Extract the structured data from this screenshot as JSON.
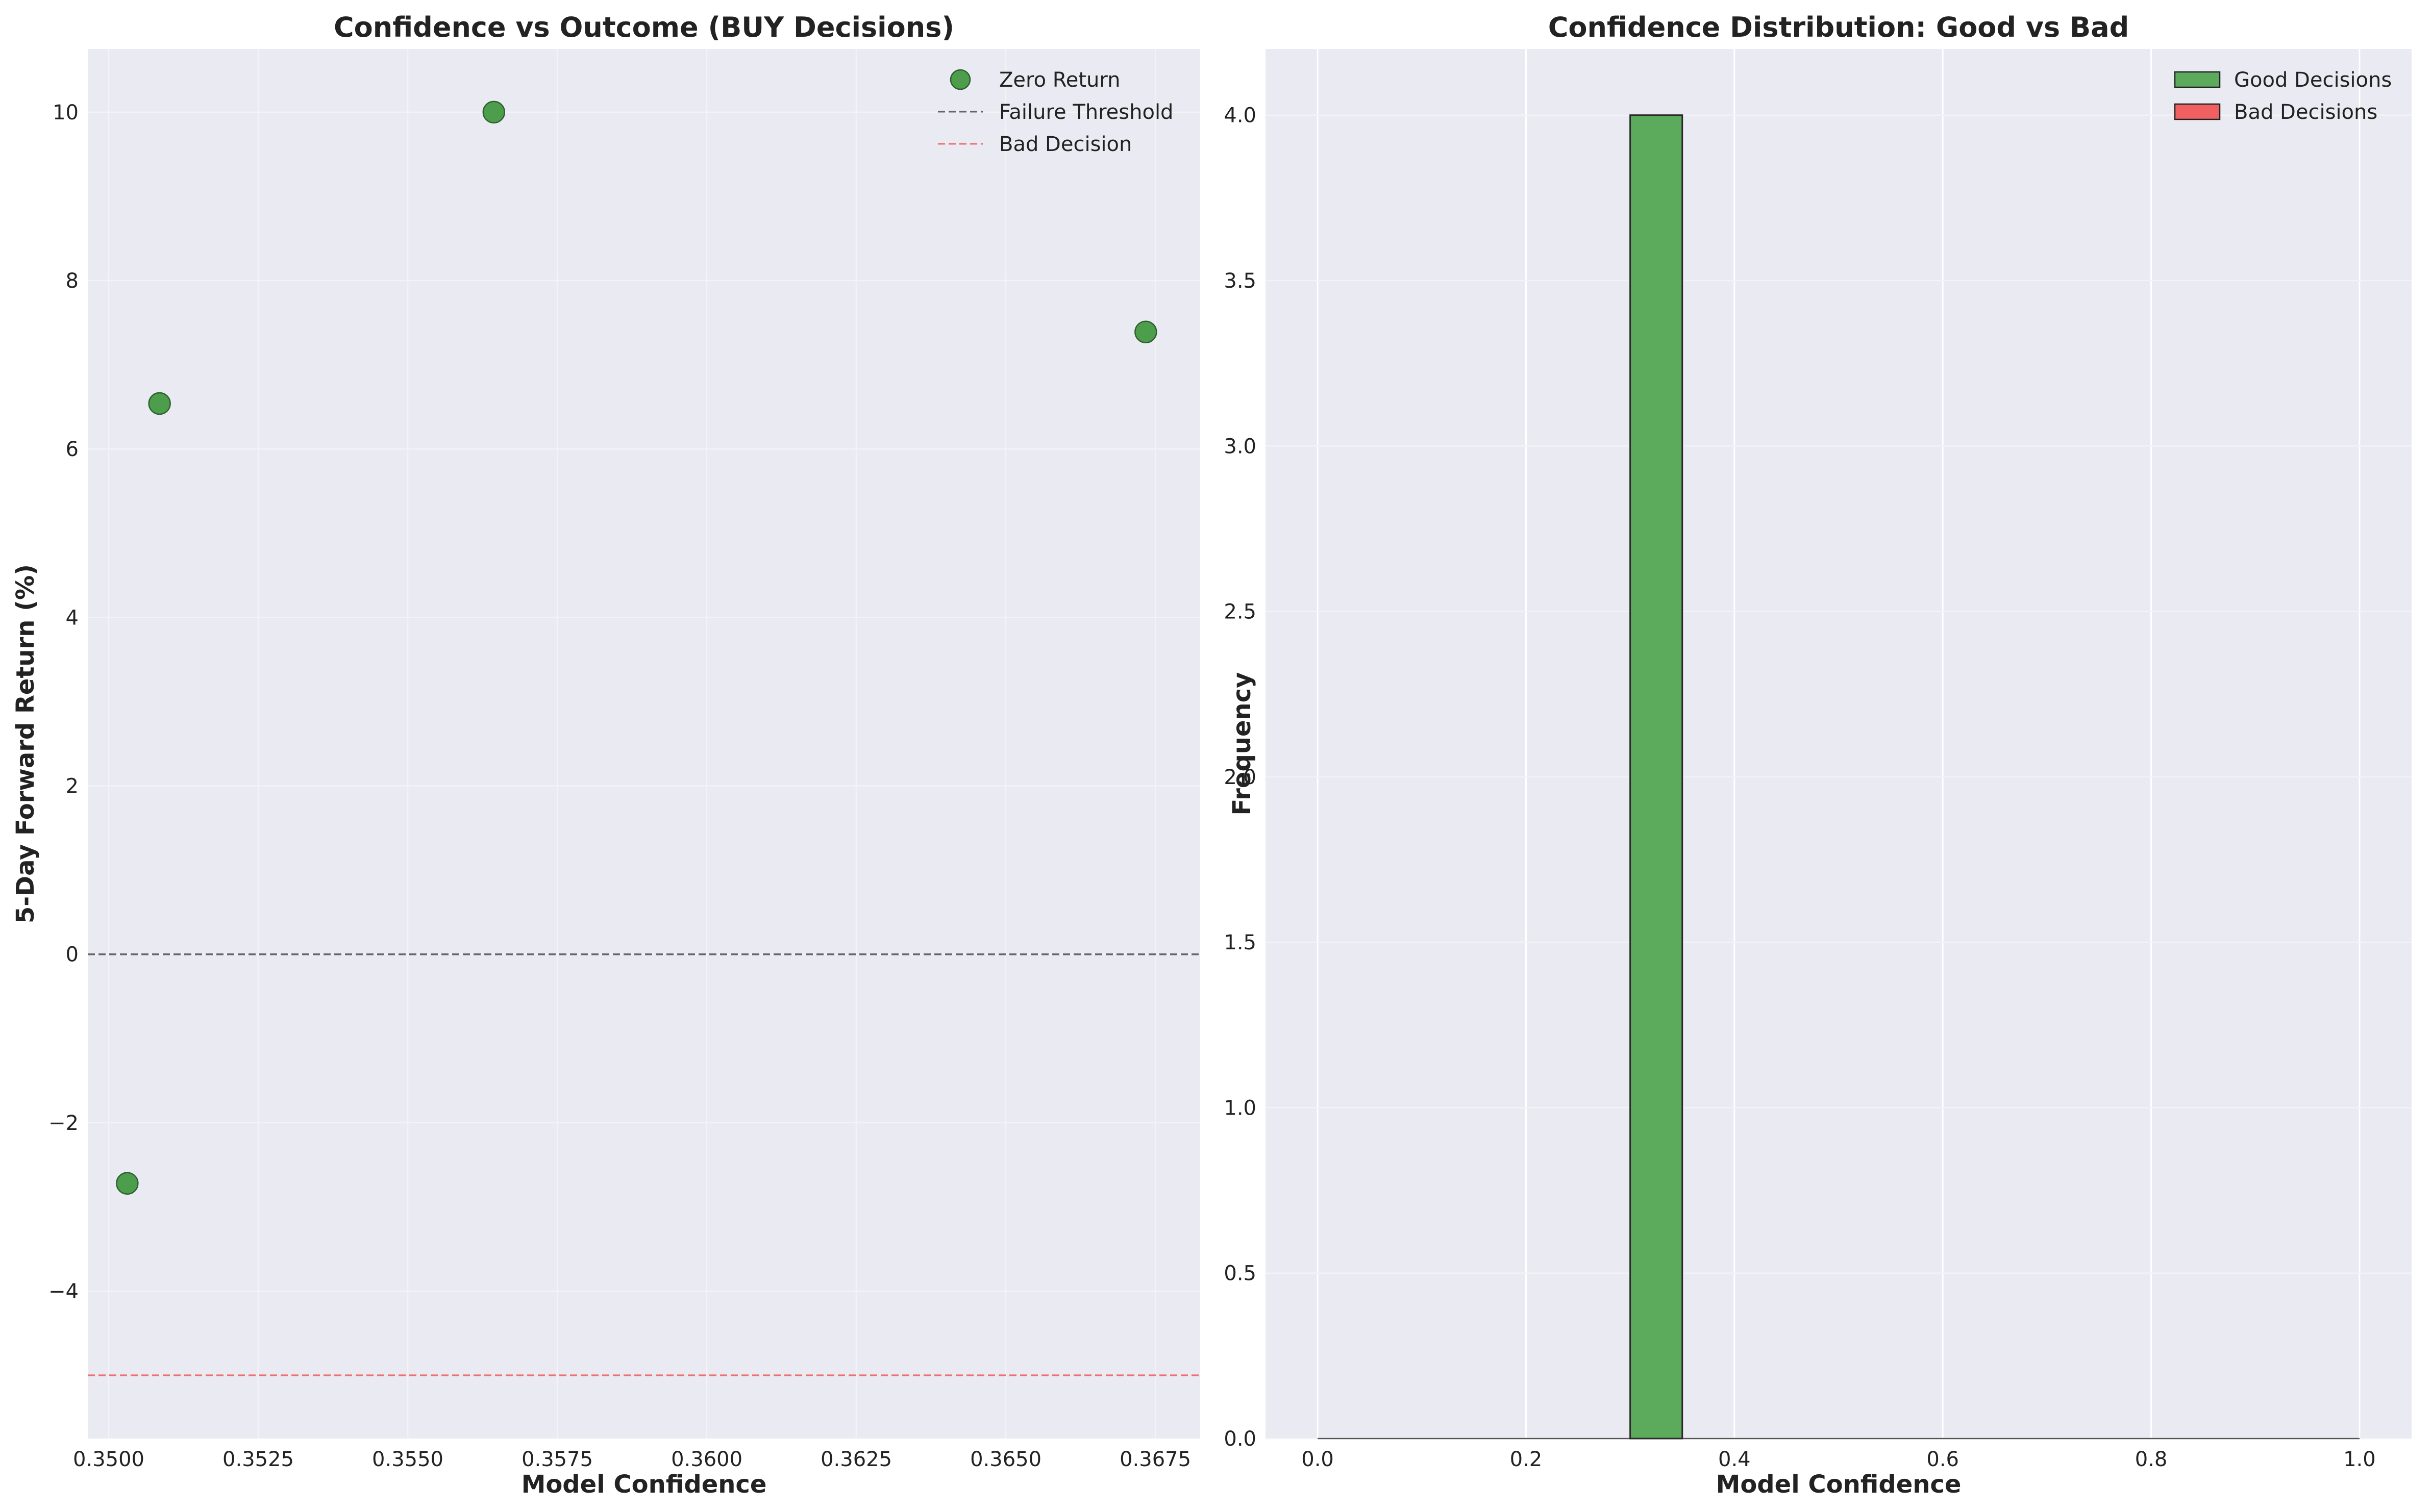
{
  "chart_data": [
    {
      "type": "scatter",
      "title": "Confidence vs Outcome (BUY Decisions)",
      "xlabel": "Model Confidence",
      "ylabel": "5-Day Forward Return (%)",
      "xlim": [
        0.34965,
        0.36825
      ],
      "ylim": [
        -5.75,
        10.75
      ],
      "xticks": [
        0.35,
        0.3525,
        0.355,
        0.3575,
        0.36,
        0.3625,
        0.365,
        0.3675
      ],
      "xtick_labels": [
        "0.3500",
        "0.3525",
        "0.3550",
        "0.3575",
        "0.3600",
        "0.3625",
        "0.3650",
        "0.3675"
      ],
      "yticks": [
        -4,
        -2,
        0,
        2,
        4,
        6,
        8,
        10
      ],
      "ytick_labels": [
        "−4",
        "−2",
        "0",
        "2",
        "4",
        "6",
        "8",
        "10"
      ],
      "grid": true,
      "legend_position": "top-right",
      "series": [
        {
          "name": "Zero Return",
          "color": "#4c9e4c",
          "points": [
            {
              "x": 0.35031,
              "y": -2.72
            },
            {
              "x": 0.35085,
              "y": 6.54
            },
            {
              "x": 0.35644,
              "y": 10.0
            },
            {
              "x": 0.36734,
              "y": 7.39
            }
          ]
        }
      ],
      "reference_lines": [
        {
          "name": "Failure Threshold",
          "y": 0,
          "color": "#666666",
          "style": "dashed"
        },
        {
          "name": "Bad Decision",
          "y": -5,
          "color": "#f07070",
          "style": "dashed"
        }
      ]
    },
    {
      "type": "bar",
      "subtype": "histogram",
      "title": "Confidence Distribution: Good vs Bad",
      "xlabel": "Model Confidence",
      "ylabel": "Frequency",
      "xlim": [
        -0.05,
        1.05
      ],
      "ylim": [
        0,
        4.2
      ],
      "xticks": [
        0.0,
        0.2,
        0.4,
        0.6,
        0.8,
        1.0
      ],
      "xtick_labels": [
        "0.0",
        "0.2",
        "0.4",
        "0.6",
        "0.8",
        "1.0"
      ],
      "yticks": [
        0.0,
        0.5,
        1.0,
        1.5,
        2.0,
        2.5,
        3.0,
        3.5,
        4.0
      ],
      "ytick_labels": [
        "0.0",
        "0.5",
        "1.0",
        "1.5",
        "2.0",
        "2.5",
        "3.0",
        "3.5",
        "4.0"
      ],
      "grid": true,
      "legend_position": "top-right",
      "bin_edges": [
        0.0,
        0.05,
        0.1,
        0.15,
        0.2,
        0.25,
        0.3,
        0.35,
        0.4,
        0.45,
        0.5,
        0.55,
        0.6,
        0.65,
        0.7,
        0.75,
        0.8,
        0.85,
        0.9,
        0.95,
        1.0
      ],
      "series": [
        {
          "name": "Good Decisions",
          "color": "#5cab5c",
          "counts": [
            0,
            0,
            0,
            0,
            0,
            0,
            4,
            0,
            0,
            0,
            0,
            0,
            0,
            0,
            0,
            0,
            0,
            0,
            0,
            0
          ]
        },
        {
          "name": "Bad Decisions",
          "color": "#f06060",
          "counts": [
            0,
            0,
            0,
            0,
            0,
            0,
            0,
            0,
            0,
            0,
            0,
            0,
            0,
            0,
            0,
            0,
            0,
            0,
            0,
            0
          ]
        }
      ]
    }
  ]
}
